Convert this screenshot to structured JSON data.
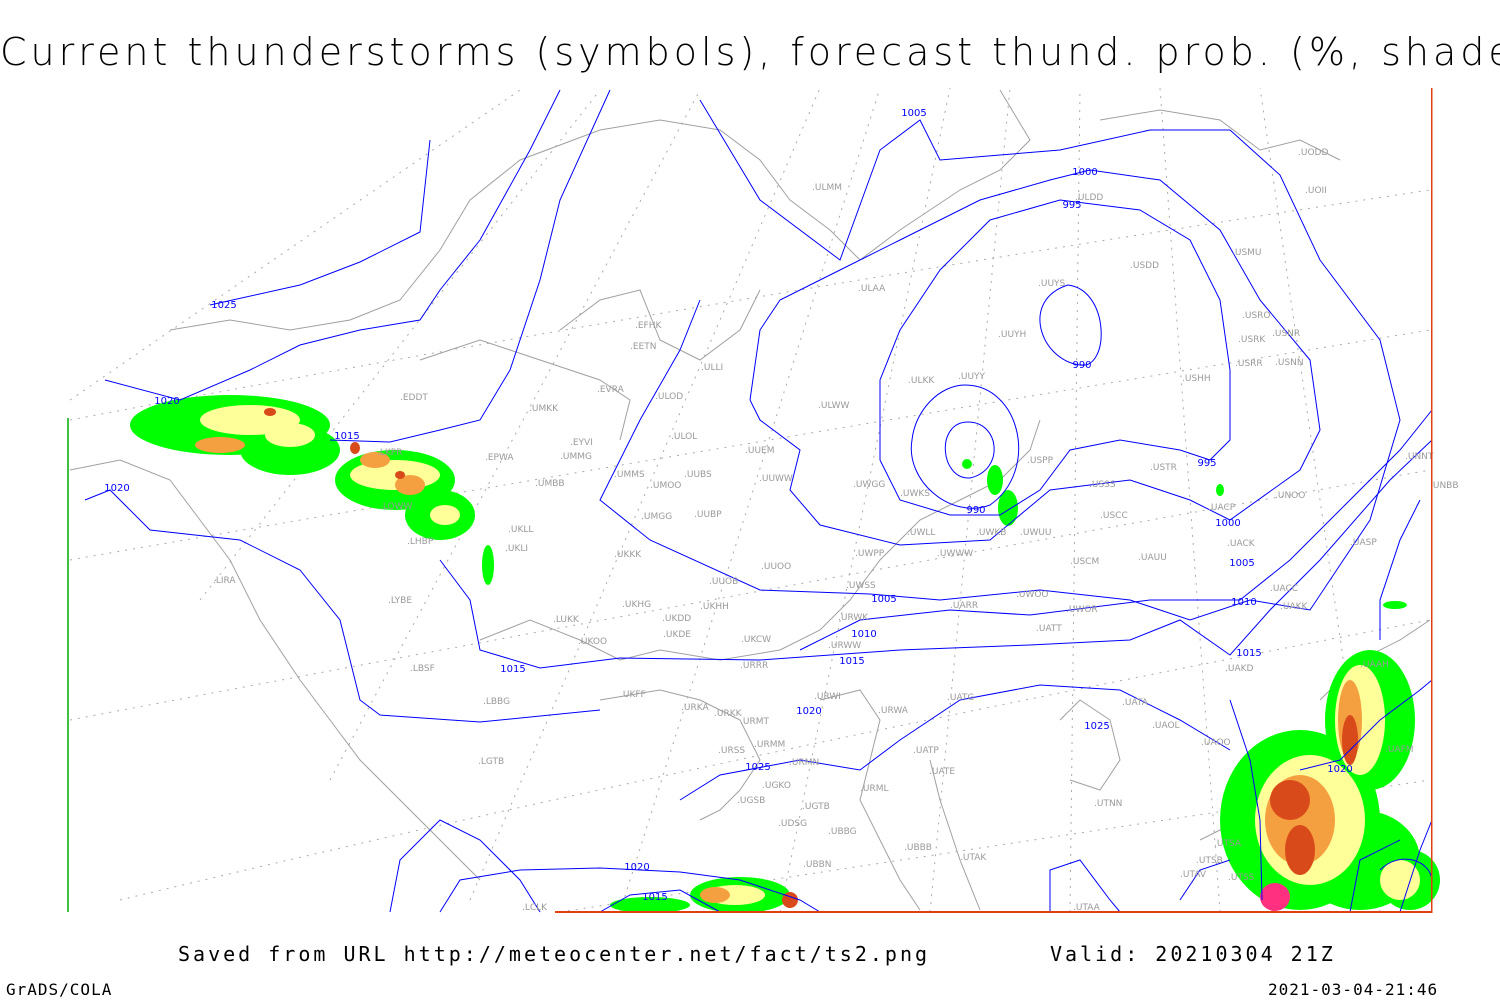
{
  "title": "Current thunderstorms (symbols), forecast thund. prob. (%, shaded)",
  "footer": {
    "saved_from": "Saved from URL http://meteocenter.net/fact/ts2.png",
    "valid": "Valid: 20210304 21Z",
    "software": "GrADS/COLA",
    "timestamp": "2021-03-04-21:46"
  },
  "colors": {
    "isobar": "#0000ff",
    "coastline": "#a0a0a0",
    "prob_low": "#00ff00",
    "prob_mid": "#ffff99",
    "prob_high": "#f5a040",
    "prob_very_high": "#d84a1a",
    "prob_max": "#ff3080"
  },
  "isobar_labels": [
    "1025",
    "1020",
    "1020",
    "1015",
    "1015",
    "1005",
    "1000",
    "995",
    "990",
    "990",
    "995",
    "1000",
    "1005",
    "1005",
    "1010",
    "1010",
    "1015",
    "1015",
    "1020",
    "1025",
    "1025",
    "1020",
    "1015",
    "1020"
  ],
  "stations": [
    "EDDT",
    "LKPR",
    "EPWA",
    "LOWW",
    "LHBP",
    "UKLL",
    "UKLI",
    "LIRA",
    "LYBE",
    "LUKK",
    "UKOO",
    "LBSF",
    "LBBG",
    "LGTB",
    "UMKK",
    "EVRA",
    "ULOD",
    "EYVI",
    "UMMG",
    "UMBB",
    "UMMS",
    "UMOO",
    "UUBS",
    "UMGG",
    "UUBP",
    "UKKK",
    "UUOB",
    "UUOO",
    "UKHG",
    "UKDD",
    "UKHH",
    "UKDE",
    "UKCW",
    "URRR",
    "UKFF",
    "URKA",
    "URKK",
    "URMT",
    "URSS",
    "URMM",
    "URMN",
    "UGKO",
    "UGSB",
    "UGTB",
    "UDSG",
    "UBBG",
    "UBBB",
    "UBBN",
    "LCLK",
    "EFHK",
    "EETN",
    "ULLI",
    "ULOL",
    "UUEM",
    "UUWW",
    "UWGG",
    "UWKS",
    "UWPP",
    "UWWW",
    "UWLL",
    "UWKB",
    "UWUU",
    "UWSS",
    "UWOO",
    "UWOR",
    "UARR",
    "URWK",
    "URWW",
    "URWI",
    "URWA",
    "UATG",
    "UATT",
    "UATA",
    "UAOL",
    "UAOO",
    "UATE",
    "UATP",
    "URML",
    "UTNN",
    "UTAK",
    "UTAA",
    "UTAV",
    "UTSA",
    "UTSB",
    "UTSS",
    "UAKD",
    "UAAH",
    "UAFM",
    "UACC",
    "UAKK",
    "UASP",
    "UACK",
    "UACP",
    "UNOO",
    "UNNT",
    "UNBB",
    "USCC",
    "USSS",
    "USTR",
    "USPP",
    "USCM",
    "UAUU",
    "USHH",
    "USRR",
    "USNN",
    "USRK",
    "USNR",
    "USRO",
    "USMU",
    "USDD",
    "UUYS",
    "UUYH",
    "ULKK",
    "UUYY",
    "ULWW",
    "ULAA",
    "ULMM",
    "ULDD",
    "UODD",
    "UOII"
  ]
}
